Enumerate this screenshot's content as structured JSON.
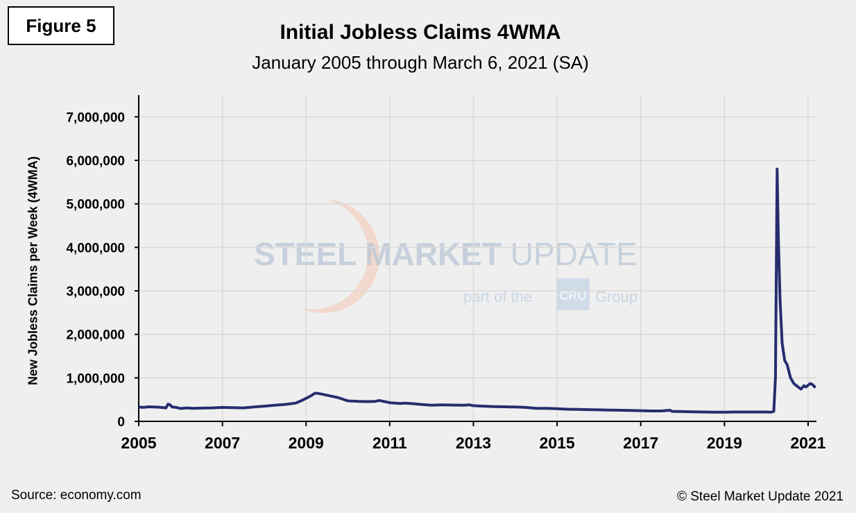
{
  "figure_label": "Figure 5",
  "source": "Source: economy.com",
  "copyright": "© Steel Market Update 2021",
  "watermark": {
    "main": "STEEL MARKET UPDATE",
    "main_bold": "STEEL MARKET",
    "main_light": " UPDATE",
    "sub_pre": "part of the",
    "sub_logo": "CRU",
    "sub_post": "Group"
  },
  "colors": {
    "line": "#262d6e",
    "grid": "#d9d9d9",
    "background": "#efefef"
  },
  "chart_data": {
    "type": "line",
    "title": "Initial Jobless Claims 4WMA",
    "subtitle": "January 2005 through March 6, 2021 (SA)",
    "xlabel": "",
    "ylabel": "New Jobless Claims per Week (4WMA)",
    "xlim": [
      2005.0,
      2021.2
    ],
    "ylim": [
      0,
      7500000
    ],
    "y_ticks": [
      0,
      1000000,
      2000000,
      3000000,
      4000000,
      5000000,
      6000000,
      7000000
    ],
    "y_tick_labels": [
      "0",
      "1,000,000",
      "2,000,000",
      "3,000,000",
      "4,000,000",
      "5,000,000",
      "6,000,000",
      "7,000,000"
    ],
    "x_ticks": [
      2005,
      2007,
      2009,
      2011,
      2013,
      2015,
      2017,
      2019,
      2021
    ],
    "x_tick_labels": [
      "2005",
      "2007",
      "2009",
      "2011",
      "2013",
      "2015",
      "2017",
      "2019",
      "2021"
    ],
    "x_grid_years": [
      2005,
      2007,
      2009,
      2011,
      2013,
      2015,
      2017,
      2019,
      2021
    ],
    "grid": true,
    "legend": "none",
    "series": [
      {
        "x": [
          2005.0,
          2005.1,
          2005.25,
          2005.5,
          2005.65,
          2005.7,
          2005.75,
          2005.8,
          2005.9,
          2006.0,
          2006.15,
          2006.3,
          2006.5,
          2006.75,
          2007.0,
          2007.25,
          2007.5,
          2007.75,
          2008.0,
          2008.25,
          2008.5,
          2008.75,
          2008.9,
          2009.0,
          2009.1,
          2009.2,
          2009.25,
          2009.4,
          2009.6,
          2009.75,
          2010.0,
          2010.25,
          2010.5,
          2010.65,
          2010.75,
          2011.0,
          2011.25,
          2011.35,
          2011.5,
          2011.75,
          2012.0,
          2012.25,
          2012.5,
          2012.75,
          2012.9,
          2013.0,
          2013.25,
          2013.5,
          2013.75,
          2013.9,
          2014.0,
          2014.25,
          2014.5,
          2014.75,
          2015.0,
          2015.25,
          2015.5,
          2015.75,
          2016.0,
          2016.25,
          2016.5,
          2016.75,
          2017.0,
          2017.25,
          2017.5,
          2017.7,
          2017.75,
          2018.0,
          2018.25,
          2018.5,
          2018.75,
          2019.0,
          2019.25,
          2019.5,
          2019.75,
          2020.0,
          2020.12,
          2020.18,
          2020.22,
          2020.26,
          2020.29,
          2020.33,
          2020.38,
          2020.44,
          2020.5,
          2020.58,
          2020.66,
          2020.75,
          2020.83,
          2020.9,
          2020.95,
          2021.0,
          2021.05,
          2021.1,
          2021.15,
          2021.18
        ],
        "y": [
          330000,
          320000,
          335000,
          325000,
          310000,
          395000,
          380000,
          330000,
          320000,
          295000,
          310000,
          300000,
          305000,
          310000,
          320000,
          315000,
          310000,
          330000,
          350000,
          370000,
          390000,
          420000,
          480000,
          530000,
          580000,
          640000,
          650000,
          620000,
          580000,
          550000,
          470000,
          460000,
          455000,
          460000,
          480000,
          430000,
          410000,
          420000,
          410000,
          390000,
          370000,
          380000,
          375000,
          370000,
          380000,
          360000,
          350000,
          340000,
          335000,
          330000,
          330000,
          320000,
          300000,
          300000,
          290000,
          280000,
          275000,
          270000,
          265000,
          260000,
          255000,
          250000,
          245000,
          240000,
          240000,
          255000,
          230000,
          225000,
          220000,
          215000,
          210000,
          210000,
          215000,
          215000,
          215000,
          215000,
          212000,
          230000,
          1000000,
          5800000,
          4200000,
          2800000,
          1800000,
          1400000,
          1300000,
          1000000,
          870000,
          800000,
          740000,
          820000,
          790000,
          830000,
          870000,
          850000,
          800000,
          780000
        ]
      }
    ]
  }
}
